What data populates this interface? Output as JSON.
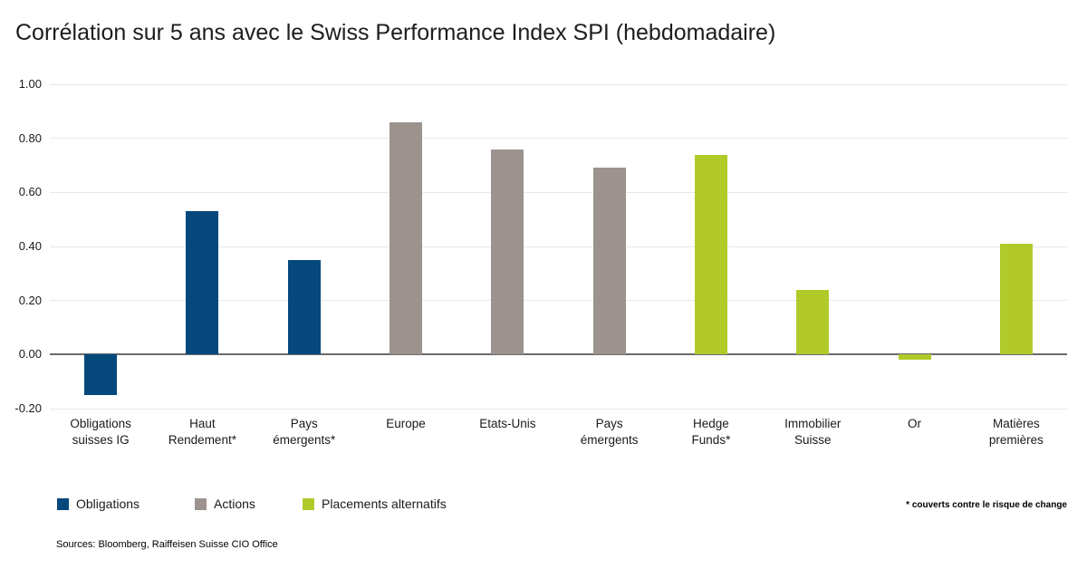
{
  "title": "Corrélation sur 5 ans avec le Swiss Performance Index SPI (hebdomadaire)",
  "chart_data": {
    "type": "bar",
    "categories": [
      "Obligations\nsuisses IG",
      "Haut\nRendement*",
      "Pays\némergents*",
      "Europe",
      "Etats-Unis",
      "Pays\némergents",
      "Hedge\nFunds*",
      "Immobilier\nSuisse",
      "Or",
      "Matières\npremières"
    ],
    "values": [
      -0.15,
      0.53,
      0.35,
      0.86,
      0.76,
      0.69,
      0.74,
      0.24,
      -0.02,
      0.41
    ],
    "groups": [
      "obligations",
      "obligations",
      "obligations",
      "actions",
      "actions",
      "actions",
      "alternatifs",
      "alternatifs",
      "alternatifs",
      "alternatifs"
    ],
    "title": "Corrélation sur 5 ans avec le Swiss Performance Index SPI (hebdomadaire)",
    "xlabel": "",
    "ylabel": "",
    "ylim": [
      -0.2,
      1.0
    ],
    "y_ticks": [
      {
        "value": 1.0,
        "label": "1.00"
      },
      {
        "value": 0.8,
        "label": "0.80"
      },
      {
        "value": 0.6,
        "label": "0.60"
      },
      {
        "value": 0.4,
        "label": "0.40"
      },
      {
        "value": 0.2,
        "label": "0.20"
      },
      {
        "value": 0.0,
        "label": "0.00"
      },
      {
        "value": -0.2,
        "label": "-0.20"
      }
    ],
    "grid": true,
    "legend_position": "bottom"
  },
  "colors": {
    "obligations": "#04487c",
    "actions": "#9c938e",
    "alternatifs": "#b1ca2a",
    "gridline": "#e8e8e8",
    "zeroline": "#6b6b6b"
  },
  "legend": {
    "items": [
      {
        "label": "Obligations",
        "group": "obligations"
      },
      {
        "label": "Actions",
        "group": "actions"
      },
      {
        "label": "Placements alternatifs",
        "group": "alternatifs"
      }
    ]
  },
  "footnote": "* couverts contre le risque de change",
  "sources": "Sources: Bloomberg, Raiffeisen Suisse CIO Office"
}
